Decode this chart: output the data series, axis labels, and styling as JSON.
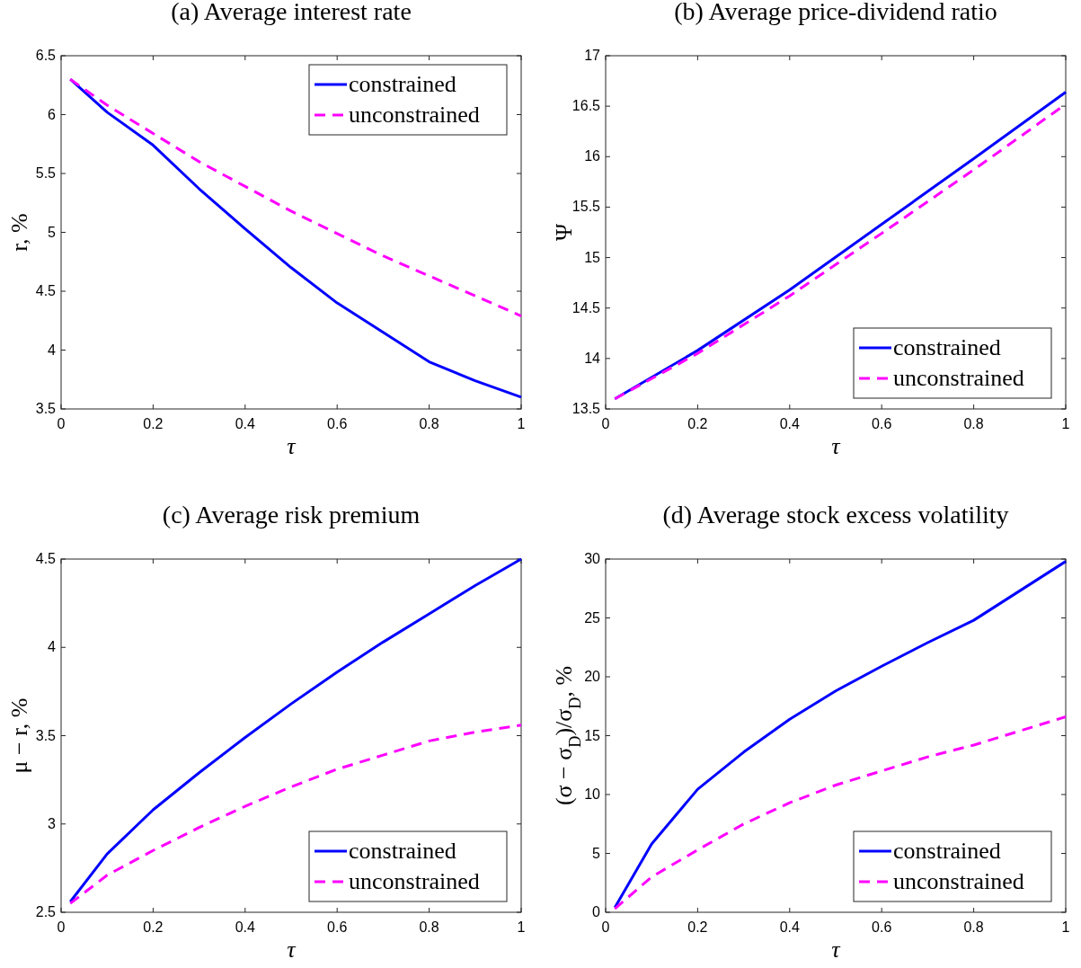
{
  "chart_data": [
    {
      "type": "line",
      "title": "(a) Average interest rate",
      "xlabel": "τ",
      "ylabel": "r, %",
      "x": [
        0.02,
        0.1,
        0.2,
        0.3,
        0.4,
        0.5,
        0.6,
        0.7,
        0.8,
        0.9,
        1
      ],
      "xlim": [
        0,
        1
      ],
      "xticks": [
        0,
        0.2,
        0.4,
        0.6,
        0.8,
        1
      ],
      "ylim": [
        3.5,
        6.5
      ],
      "yticks": [
        3.5,
        4,
        4.5,
        5,
        5.5,
        6,
        6.5
      ],
      "legend": "top right",
      "grid": false,
      "series": [
        {
          "name": "constrained",
          "color": "#0000ff",
          "line_style": "solid",
          "values": [
            6.3,
            6.02,
            5.74,
            5.37,
            5.03,
            4.7,
            4.4,
            4.15,
            3.9,
            3.74,
            3.6
          ]
        },
        {
          "name": "unconstrained",
          "color": "#ff00ff",
          "line_style": "dashed",
          "values": [
            6.3,
            6.08,
            5.84,
            5.6,
            5.39,
            5.18,
            4.99,
            4.8,
            4.63,
            4.46,
            4.29
          ]
        }
      ]
    },
    {
      "type": "line",
      "title": "(b) Average price-dividend ratio",
      "xlabel": "τ",
      "ylabel": "Ψ",
      "x": [
        0.02,
        0.2,
        0.4,
        0.6,
        0.8,
        1
      ],
      "xlim": [
        0,
        1
      ],
      "xticks": [
        0,
        0.2,
        0.4,
        0.6,
        0.8,
        1
      ],
      "ylim": [
        13.5,
        17
      ],
      "yticks": [
        13.5,
        14,
        14.5,
        15,
        15.5,
        16,
        16.5,
        17
      ],
      "legend": "bottom right",
      "grid": false,
      "series": [
        {
          "name": "constrained",
          "color": "#0000ff",
          "line_style": "solid",
          "values": [
            13.6,
            14.08,
            14.68,
            15.33,
            15.98,
            16.64
          ]
        },
        {
          "name": "unconstrained",
          "color": "#ff00ff",
          "line_style": "dashed",
          "values": [
            13.6,
            14.05,
            14.62,
            15.24,
            15.87,
            16.52
          ]
        }
      ]
    },
    {
      "type": "line",
      "title": "(c) Average risk premium",
      "xlabel": "τ",
      "ylabel": "μ − r, %",
      "x": [
        0.02,
        0.1,
        0.2,
        0.3,
        0.4,
        0.5,
        0.6,
        0.7,
        0.8,
        0.9,
        1
      ],
      "xlim": [
        0,
        1
      ],
      "xticks": [
        0,
        0.2,
        0.4,
        0.6,
        0.8,
        1
      ],
      "ylim": [
        2.5,
        4.5
      ],
      "yticks": [
        2.5,
        3,
        3.5,
        4,
        4.5
      ],
      "legend": "bottom right",
      "grid": false,
      "series": [
        {
          "name": "constrained",
          "color": "#0000ff",
          "line_style": "solid",
          "values": [
            2.56,
            2.83,
            3.08,
            3.29,
            3.49,
            3.68,
            3.86,
            4.03,
            4.19,
            4.35,
            4.5
          ]
        },
        {
          "name": "unconstrained",
          "color": "#ff00ff",
          "line_style": "dashed",
          "values": [
            2.55,
            2.71,
            2.85,
            2.98,
            3.1,
            3.21,
            3.31,
            3.39,
            3.47,
            3.52,
            3.56
          ]
        }
      ]
    },
    {
      "type": "line",
      "title": "(d) Average stock excess volatility",
      "xlabel": "τ",
      "ylabel": "(σ − σ$_{D}$)/σ$_{D}$, %",
      "x": [
        0.02,
        0.1,
        0.2,
        0.3,
        0.4,
        0.5,
        0.6,
        0.7,
        0.8,
        0.9,
        1
      ],
      "xlim": [
        0,
        1
      ],
      "xticks": [
        0,
        0.2,
        0.4,
        0.6,
        0.8,
        1
      ],
      "ylim": [
        0,
        30
      ],
      "yticks": [
        0,
        5,
        10,
        15,
        20,
        25,
        30
      ],
      "legend": "bottom right",
      "grid": false,
      "series": [
        {
          "name": "constrained",
          "color": "#0000ff",
          "line_style": "solid",
          "values": [
            0.4,
            5.8,
            10.45,
            13.6,
            16.4,
            18.8,
            20.9,
            22.9,
            24.8,
            27.3,
            29.8
          ]
        },
        {
          "name": "unconstrained",
          "color": "#ff00ff",
          "line_style": "dashed",
          "values": [
            0.3,
            3.0,
            5.3,
            7.5,
            9.3,
            10.8,
            12.0,
            13.2,
            14.2,
            15.4,
            16.6
          ]
        }
      ]
    }
  ]
}
